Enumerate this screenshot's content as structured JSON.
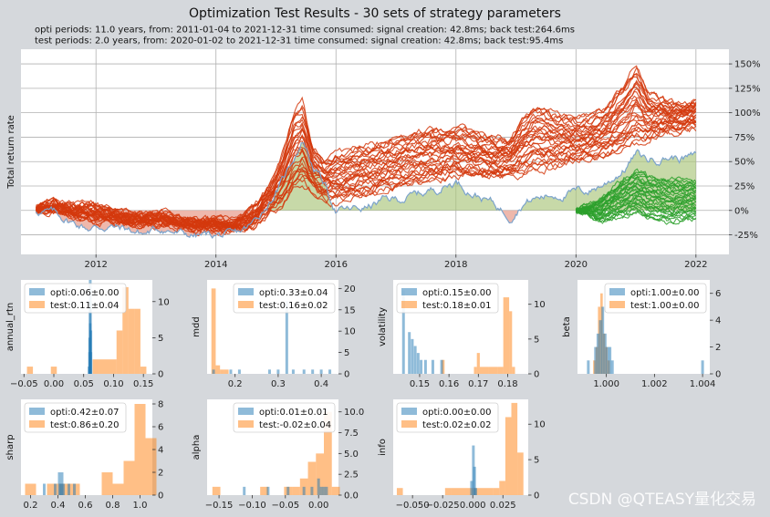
{
  "figure": {
    "title": "Optimization Test Results - 30 sets of strategy parameters",
    "subtitle_opti": "opti periods: 11.0 years, from: 2011-01-04 to 2021-12-31  time consumed:  signal creation: 42.8ms;  back test:264.6ms",
    "subtitle_test": "test periods: 2.0 years, from: 2020-01-02 to 2021-12-31  time consumed:  signal creation: 42.8ms;  back test:95.4ms",
    "watermark": "CSDN @QTEASY量化交易"
  },
  "colors": {
    "opti": "#1f77b4",
    "test": "#ff7f0e",
    "opti_curve": "#d4380d",
    "test_curve": "#2ca02c",
    "benchmark": "#7ba3cc",
    "fill_up": "#a9c47a",
    "fill_down": "#e8a090"
  },
  "chart_data": [
    {
      "type": "line",
      "id": "main",
      "title": "Total return rate",
      "ylabel": "Total return rate",
      "x_ticks": [
        2012,
        2014,
        2016,
        2018,
        2020,
        2022
      ],
      "y_ticks": [
        "-25%",
        "0%",
        "25%",
        "50%",
        "75%",
        "100%",
        "125%",
        "150%"
      ],
      "y_tick_values": [
        -25,
        0,
        25,
        50,
        75,
        100,
        125,
        150
      ],
      "xlim": [
        2010.75,
        2022.55
      ],
      "ylim": [
        -45,
        165
      ],
      "benchmark": {
        "x": [
          2011.0,
          2011.3,
          2011.6,
          2011.9,
          2012.2,
          2012.5,
          2012.8,
          2013.1,
          2013.4,
          2013.7,
          2014.0,
          2014.3,
          2014.6,
          2014.9,
          2015.1,
          2015.3,
          2015.45,
          2015.6,
          2015.8,
          2016.0,
          2016.2,
          2016.5,
          2016.8,
          2017.1,
          2017.4,
          2017.7,
          2018.0,
          2018.3,
          2018.6,
          2018.9,
          2019.1,
          2019.3,
          2019.6,
          2019.9,
          2020.2,
          2020.5,
          2020.8,
          2021.0,
          2021.2,
          2021.5,
          2021.8,
          2022.0
        ],
        "values": [
          0,
          -3,
          -12,
          -18,
          -16,
          -19,
          -24,
          -18,
          -24,
          -26,
          -25,
          -27,
          -15,
          10,
          28,
          55,
          73,
          48,
          28,
          0,
          0,
          3,
          10,
          12,
          17,
          23,
          30,
          18,
          8,
          -5,
          8,
          12,
          16,
          18,
          20,
          28,
          42,
          58,
          52,
          55,
          54,
          55
        ]
      },
      "opti_envelope": {
        "x": [
          2011.0,
          2011.3,
          2011.6,
          2011.9,
          2012.2,
          2012.5,
          2012.8,
          2013.1,
          2013.4,
          2013.7,
          2014.0,
          2014.3,
          2014.6,
          2014.9,
          2015.1,
          2015.3,
          2015.45,
          2015.6,
          2015.8,
          2016.0,
          2016.2,
          2016.5,
          2016.8,
          2017.1,
          2017.4,
          2017.7,
          2018.0,
          2018.3,
          2018.6,
          2018.9,
          2019.1,
          2019.3,
          2019.6,
          2019.9,
          2020.2,
          2020.5,
          2020.8,
          2021.0,
          2021.2,
          2021.5,
          2021.8,
          2022.0
        ],
        "low": [
          0,
          0,
          -6,
          -10,
          -12,
          -13,
          -14,
          -14,
          -17,
          -19,
          -20,
          -21,
          -18,
          0,
          5,
          22,
          28,
          20,
          12,
          10,
          12,
          16,
          20,
          24,
          28,
          32,
          36,
          34,
          34,
          36,
          38,
          42,
          44,
          50,
          52,
          56,
          62,
          70,
          74,
          80,
          82,
          84
        ],
        "high": [
          2,
          10,
          5,
          6,
          3,
          -4,
          -6,
          -2,
          -8,
          -10,
          -8,
          -12,
          2,
          25,
          55,
          100,
          110,
          68,
          50,
          58,
          62,
          66,
          70,
          76,
          80,
          82,
          84,
          80,
          74,
          70,
          92,
          108,
          100,
          94,
          96,
          104,
          130,
          150,
          120,
          112,
          110,
          112
        ]
      },
      "test_envelope": {
        "x": [
          2020.0,
          2020.2,
          2020.4,
          2020.6,
          2020.8,
          2021.0,
          2021.2,
          2021.4,
          2021.6,
          2021.8,
          2022.0
        ],
        "low": [
          0,
          -5,
          -12,
          -8,
          -6,
          -2,
          -8,
          -10,
          -12,
          -9,
          -8
        ],
        "high": [
          0,
          5,
          12,
          22,
          32,
          40,
          35,
          33,
          32,
          31,
          30
        ]
      }
    },
    {
      "type": "histogram",
      "id": "annual_rtn",
      "ylabel": "annual_rtn",
      "x_ticks": [
        "−0.05",
        "0.00",
        "0.05",
        "0.10",
        "0.15"
      ],
      "x_tick_values": [
        -0.05,
        0.0,
        0.05,
        0.1,
        0.15
      ],
      "y_ticks": [
        "0",
        "5",
        "10"
      ],
      "y_tick_values": [
        0,
        5,
        10
      ],
      "xlim": [
        -0.055,
        0.165
      ],
      "ylim": [
        0,
        13
      ],
      "legend": [
        "opti:0.06±0.00",
        "test:0.11±0.04"
      ],
      "opti_values": [
        0.059,
        0.06,
        0.06,
        0.061,
        0.061,
        0.061,
        0.062,
        0.062
      ],
      "opti_counts": [
        1,
        3,
        5,
        7,
        10,
        13,
        6,
        3
      ],
      "test_bins": [
        -0.045,
        -0.035,
        -0.005,
        0.005,
        0.065,
        0.075,
        0.105,
        0.115,
        0.125,
        0.135,
        0.145,
        0.155
      ],
      "test_counts": [
        1,
        0,
        1,
        0,
        2,
        2,
        6,
        12,
        9,
        9,
        1,
        0
      ]
    },
    {
      "type": "histogram",
      "id": "mdd",
      "ylabel": "mdd",
      "x_ticks": [
        "0.2",
        "0.3",
        "0.4"
      ],
      "x_tick_values": [
        0.2,
        0.3,
        0.4
      ],
      "y_ticks": [
        "0",
        "5",
        "10",
        "15",
        "20"
      ],
      "y_tick_values": [
        0,
        5,
        10,
        15,
        20
      ],
      "xlim": [
        0.135,
        0.44
      ],
      "ylim": [
        0,
        22
      ],
      "legend": [
        "opti:0.33±0.04",
        "test:0.16±0.02"
      ],
      "opti_values": [
        0.15,
        0.19,
        0.21,
        0.28,
        0.3,
        0.32,
        0.335,
        0.36,
        0.38,
        0.4,
        0.42
      ],
      "opti_counts": [
        1,
        1,
        1,
        1,
        1,
        17,
        1,
        1,
        1,
        1,
        1
      ],
      "test_bins": [
        0.145,
        0.155,
        0.165,
        0.175
      ],
      "test_counts": [
        20,
        2,
        1,
        1
      ]
    },
    {
      "type": "histogram",
      "id": "volatility",
      "ylabel": "volatility",
      "x_ticks": [
        "0.15",
        "0.16",
        "0.17",
        "0.18"
      ],
      "x_tick_values": [
        0.15,
        0.16,
        0.17,
        0.18
      ],
      "y_ticks": [
        "0",
        "5",
        "10"
      ],
      "y_tick_values": [
        0,
        5,
        10
      ],
      "xlim": [
        0.141,
        0.187
      ],
      "ylim": [
        0,
        13.5
      ],
      "legend": [
        "opti:0.15±0.00",
        "test:0.18±0.01"
      ],
      "opti_values": [
        0.1445,
        0.1465,
        0.1475,
        0.1485,
        0.1495,
        0.1505,
        0.152,
        0.1545,
        0.1575
      ],
      "opti_counts": [
        12,
        6,
        5,
        4,
        3,
        2,
        2,
        2,
        2
      ],
      "test_bins": [
        0.1575,
        0.1585,
        0.1685,
        0.1695,
        0.1705,
        0.1735,
        0.1765,
        0.1785,
        0.1805,
        0.1815
      ],
      "test_counts": [
        2,
        0,
        1,
        3,
        1,
        1,
        1,
        11,
        9,
        1
      ]
    },
    {
      "type": "histogram",
      "id": "beta",
      "ylabel": "beta",
      "x_ticks": [
        "1.000",
        "1.002",
        "1.004"
      ],
      "x_tick_values": [
        1.0,
        1.002,
        1.004
      ],
      "y_ticks": [
        "0",
        "2",
        "4",
        "6"
      ],
      "y_tick_values": [
        0,
        2,
        4,
        6
      ],
      "xlim": [
        0.9988,
        1.0043
      ],
      "ylim": [
        0,
        7
      ],
      "legend": [
        "opti:1.00±0.00",
        "test:1.00±0.00"
      ],
      "opti_values": [
        0.99925,
        0.99955,
        0.99965,
        0.99975,
        0.99985,
        0.99995,
        1.00005,
        1.00015,
        1.00025,
        1.004
      ],
      "opti_counts": [
        1,
        2,
        3,
        4,
        5,
        3,
        2,
        2,
        1,
        1
      ],
      "test_bins": [
        0.99945,
        0.99955,
        0.99965,
        0.99975,
        0.99985,
        0.99995,
        1.00005
      ],
      "test_counts": [
        1,
        2,
        5,
        6,
        3,
        2,
        1
      ]
    },
    {
      "type": "histogram",
      "id": "sharp",
      "ylabel": "sharp",
      "x_ticks": [
        "0.2",
        "0.4",
        "0.6",
        "0.8",
        "1.0"
      ],
      "x_tick_values": [
        0.2,
        0.4,
        0.6,
        0.8,
        1.0
      ],
      "y_ticks": [
        "0",
        "2",
        "4",
        "6",
        "8"
      ],
      "y_tick_values": [
        0,
        2,
        4,
        6,
        8
      ],
      "xlim": [
        0.13,
        1.09
      ],
      "ylim": [
        0,
        8.4
      ],
      "legend": [
        "opti:0.42±0.07",
        "test:0.86±0.20"
      ],
      "opti_values": [
        0.3,
        0.38,
        0.41,
        0.42,
        0.43,
        0.44,
        0.48,
        0.52
      ],
      "opti_counts": [
        1,
        1,
        2,
        1,
        2,
        1,
        1,
        1
      ],
      "test_bins": [
        0.16,
        0.24,
        0.32,
        0.4,
        0.48,
        0.56,
        0.64,
        0.72,
        0.8,
        0.88,
        0.96,
        1.04
      ],
      "test_counts": [
        1,
        0,
        1,
        1,
        1,
        0,
        0,
        2,
        1,
        3,
        8,
        5
      ]
    },
    {
      "type": "histogram",
      "id": "alpha",
      "ylabel": "alpha",
      "x_ticks": [
        "−0.15",
        "−0.10",
        "−0.05",
        "0.00"
      ],
      "x_tick_values": [
        -0.15,
        -0.1,
        -0.05,
        0.0
      ],
      "y_ticks": [
        "0.0",
        "2.5",
        "5.0",
        "7.5",
        "10.0"
      ],
      "y_tick_values": [
        0,
        2.5,
        5,
        7.5,
        10
      ],
      "xlim": [
        -0.168,
        0.03
      ],
      "ylim": [
        0,
        11.5
      ],
      "legend": [
        "opti:0.01±0.01",
        "test:-0.02±0.04"
      ],
      "opti_values": [
        -0.112,
        -0.076,
        -0.046,
        -0.022,
        -0.01,
        0.0,
        0.004,
        0.008,
        0.012
      ],
      "opti_counts": [
        1,
        1,
        1,
        1,
        1,
        2,
        1,
        1,
        1
      ],
      "test_bins": [
        -0.16,
        -0.148,
        -0.088,
        -0.076,
        -0.052,
        -0.04,
        -0.028,
        -0.016,
        -0.004,
        0.008,
        0.02
      ],
      "test_counts": [
        1,
        0,
        1,
        0,
        1,
        1,
        2,
        4,
        5,
        10,
        1
      ]
    },
    {
      "type": "histogram",
      "id": "info",
      "ylabel": "info",
      "x_ticks": [
        "−0.050",
        "−0.025",
        "0.000",
        "0.025"
      ],
      "x_tick_values": [
        -0.05,
        -0.025,
        0.0,
        0.025
      ],
      "y_ticks": [
        "0",
        "5",
        "10"
      ],
      "y_tick_values": [
        0,
        5,
        10
      ],
      "xlim": [
        -0.066,
        0.046
      ],
      "ylim": [
        0,
        13.5
      ],
      "legend": [
        "opti:0.00±0.00",
        "test:0.02±0.02"
      ],
      "opti_values": [
        -0.001,
        0.0005,
        0.0015,
        0.0025
      ],
      "opti_counts": [
        2,
        7,
        4,
        1
      ],
      "test_bins": [
        -0.063,
        -0.058,
        -0.023,
        -0.018,
        0.017,
        0.022,
        0.027,
        0.032,
        0.037,
        0.042
      ],
      "test_counts": [
        1,
        0,
        1,
        1,
        1,
        2,
        11,
        13,
        6,
        0
      ]
    }
  ]
}
